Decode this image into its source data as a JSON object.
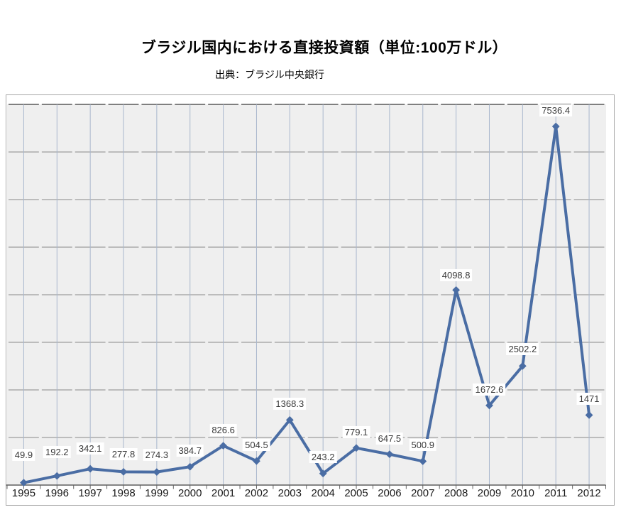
{
  "page": {
    "title": "ブラジル国内における直接投資額（単位:100万ドル）",
    "source": "出典：ブラジル中央銀行"
  },
  "chart_data": {
    "type": "line",
    "title": "ブラジル国内における直接投資額（単位:100万ドル）",
    "source": "出典：ブラジル中央銀行",
    "categories": [
      "1995",
      "1996",
      "1997",
      "1998",
      "1999",
      "2000",
      "2001",
      "2002",
      "2003",
      "2004",
      "2005",
      "2006",
      "2007",
      "2008",
      "2009",
      "2010",
      "2011",
      "2012"
    ],
    "values": [
      49.9,
      192.2,
      342.1,
      277.8,
      274.3,
      384.7,
      826.6,
      504.5,
      1368.3,
      243.2,
      779.1,
      647.5,
      500.9,
      4098.8,
      1672.6,
      2502.2,
      7536.4,
      1471
    ],
    "xlabel": "",
    "ylabel": "",
    "ylim": [
      0,
      8000
    ],
    "y_step": 1000,
    "y_tick_labels_visible": false,
    "legend": "none",
    "grid": {
      "horizontal": true,
      "vertical": true
    },
    "marker": "diamond",
    "data_labels_visible": true,
    "label_raise": [
      17,
      11,
      6,
      2,
      2,
      0,
      0,
      0,
      0,
      1,
      0,
      0,
      0,
      -2,
      0,
      1,
      0,
      0
    ],
    "colors": {
      "series": "#4a6da4",
      "plot_bg": "#efefef",
      "v_grid": "#a9b7cd",
      "h_grid": "#8a8a8a",
      "h_grid_top": "#7f7f7f",
      "axis": "#5f5f5f",
      "tick": "#666666",
      "frame_border": "#a8a8a8",
      "data_label_text": "#3a3a3a",
      "data_label_bg": "#ffffff",
      "x_label_text": "#1a1a1a",
      "title_text": "#000000"
    }
  }
}
